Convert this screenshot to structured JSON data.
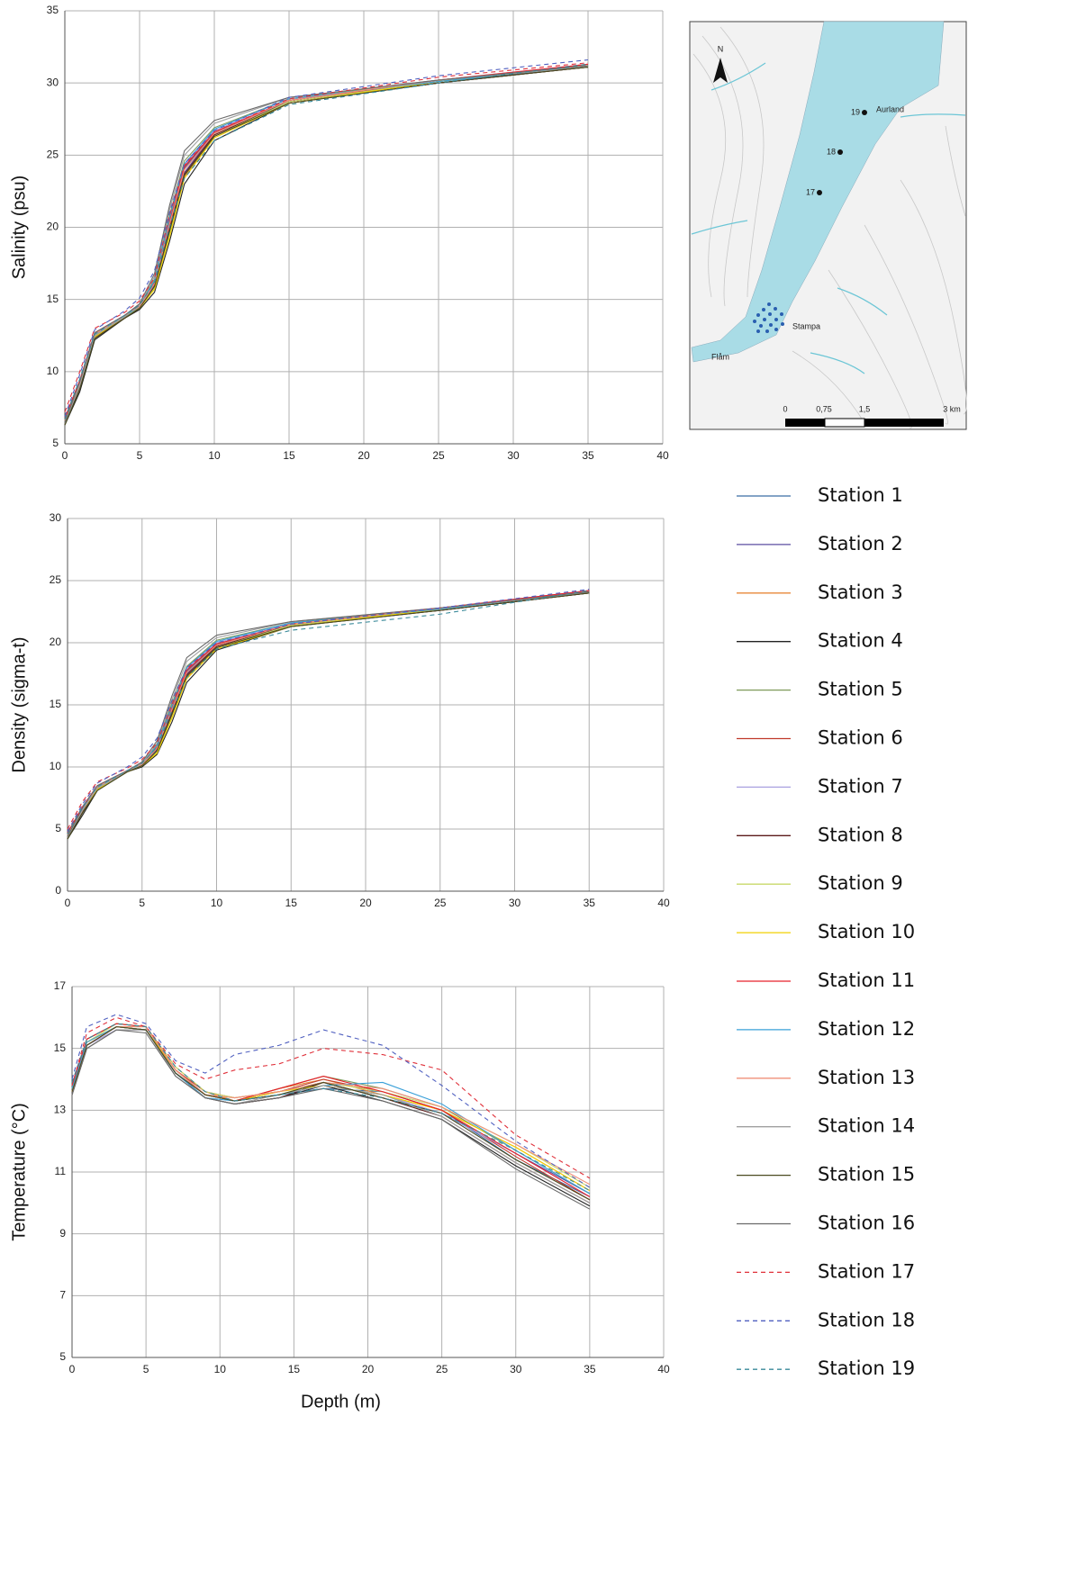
{
  "chart_data": [
    {
      "type": "line",
      "ylabel": "Salinity (psu)",
      "x": [
        0,
        1,
        2,
        4,
        5,
        6,
        7,
        8,
        10,
        15,
        25,
        35
      ],
      "xlim": [
        0,
        40
      ],
      "xticks": [
        0,
        5,
        10,
        15,
        20,
        25,
        30,
        35,
        40
      ],
      "ylim": [
        5,
        35
      ],
      "yticks": [
        5,
        10,
        15,
        20,
        25,
        30,
        35
      ],
      "grid": true,
      "series": [
        {
          "values": [
            6.5,
            9.2,
            12.4,
            13.8,
            14.5,
            16.2,
            20.3,
            24.1,
            26.6,
            28.7,
            30.1,
            31.1
          ]
        },
        {
          "values": [
            6.6,
            9.0,
            12.6,
            13.9,
            14.6,
            16.0,
            20.0,
            23.8,
            26.5,
            28.8,
            30.2,
            31.2
          ]
        },
        {
          "values": [
            6.4,
            8.8,
            12.3,
            13.7,
            14.4,
            15.8,
            19.6,
            23.5,
            26.3,
            28.7,
            30.1,
            31.3
          ]
        },
        {
          "values": [
            6.3,
            8.6,
            12.2,
            13.7,
            14.3,
            15.5,
            19.0,
            23.0,
            26.0,
            28.6,
            30.0,
            31.1
          ]
        },
        {
          "values": [
            6.7,
            9.3,
            12.6,
            13.9,
            14.6,
            16.4,
            20.8,
            24.6,
            26.9,
            28.9,
            30.2,
            31.2
          ]
        },
        {
          "values": [
            6.5,
            9.1,
            12.5,
            13.8,
            14.5,
            16.1,
            20.1,
            24.0,
            26.5,
            28.8,
            30.1,
            31.2
          ]
        },
        {
          "values": [
            6.6,
            9.2,
            12.5,
            13.8,
            14.5,
            16.3,
            20.5,
            24.3,
            26.7,
            28.8,
            30.2,
            31.3
          ]
        },
        {
          "values": [
            6.4,
            8.9,
            12.4,
            13.7,
            14.4,
            15.9,
            19.8,
            23.7,
            26.4,
            28.7,
            30.0,
            31.1
          ]
        },
        {
          "values": [
            6.5,
            9.0,
            12.5,
            13.8,
            14.4,
            15.8,
            19.5,
            23.6,
            26.3,
            28.7,
            30.1,
            31.2
          ]
        },
        {
          "values": [
            6.6,
            9.1,
            12.4,
            13.8,
            14.4,
            15.7,
            19.3,
            23.4,
            26.2,
            28.6,
            30.1,
            31.2
          ]
        },
        {
          "values": [
            6.8,
            9.4,
            12.7,
            13.9,
            14.6,
            16.2,
            20.4,
            24.2,
            26.6,
            28.8,
            30.2,
            31.3
          ]
        },
        {
          "values": [
            6.5,
            9.2,
            12.5,
            13.8,
            14.5,
            16.3,
            20.6,
            24.4,
            26.8,
            28.9,
            30.1,
            31.2
          ]
        },
        {
          "values": [
            6.6,
            9.1,
            12.6,
            13.9,
            14.5,
            16.1,
            20.2,
            24.0,
            26.5,
            28.8,
            30.2,
            31.2
          ]
        },
        {
          "values": [
            6.4,
            9.0,
            12.5,
            13.8,
            14.6,
            16.6,
            21.2,
            25.0,
            27.2,
            29.0,
            30.2,
            31.1
          ]
        },
        {
          "values": [
            6.3,
            8.8,
            12.3,
            13.7,
            14.4,
            15.9,
            19.7,
            23.6,
            26.3,
            28.6,
            30.0,
            31.1
          ]
        },
        {
          "values": [
            6.5,
            9.3,
            12.7,
            13.9,
            14.7,
            16.8,
            21.5,
            25.3,
            27.4,
            29.0,
            30.2,
            31.2
          ]
        },
        {
          "values": [
            7.2,
            10.0,
            13.0,
            14.1,
            14.9,
            16.5,
            20.8,
            24.3,
            26.6,
            28.9,
            30.4,
            31.4
          ]
        },
        {
          "values": [
            6.9,
            9.8,
            12.9,
            14.2,
            15.1,
            17.0,
            21.0,
            24.4,
            26.7,
            29.0,
            30.5,
            31.6
          ]
        },
        {
          "values": [
            6.7,
            9.5,
            12.6,
            13.9,
            14.6,
            16.2,
            20.0,
            23.4,
            26.0,
            28.5,
            30.0,
            31.3
          ]
        }
      ]
    },
    {
      "type": "line",
      "ylabel": "Density (sigma-t)",
      "x": [
        0,
        1,
        2,
        4,
        5,
        6,
        7,
        8,
        10,
        15,
        25,
        35
      ],
      "xlim": [
        0,
        40
      ],
      "xticks": [
        0,
        5,
        10,
        15,
        20,
        25,
        30,
        35,
        40
      ],
      "ylim": [
        0,
        30
      ],
      "yticks": [
        0,
        5,
        10,
        15,
        20,
        25,
        30
      ],
      "grid": true,
      "series": [
        {
          "values": [
            4.4,
            6.6,
            8.3,
            9.6,
            10.2,
            11.6,
            14.7,
            17.7,
            19.9,
            21.4,
            22.7,
            24.0
          ]
        },
        {
          "values": [
            4.5,
            6.5,
            8.4,
            9.7,
            10.3,
            11.4,
            14.4,
            17.5,
            19.8,
            21.5,
            22.8,
            24.1
          ]
        },
        {
          "values": [
            4.3,
            6.3,
            8.2,
            9.6,
            10.1,
            11.2,
            14.1,
            17.2,
            19.6,
            21.4,
            22.7,
            24.2
          ]
        },
        {
          "values": [
            4.2,
            6.1,
            8.1,
            9.6,
            10.0,
            11.0,
            13.6,
            16.8,
            19.4,
            21.3,
            22.6,
            24.0
          ]
        },
        {
          "values": [
            4.6,
            6.7,
            8.4,
            9.7,
            10.3,
            11.8,
            15.1,
            18.1,
            20.2,
            21.6,
            22.8,
            24.1
          ]
        },
        {
          "values": [
            4.4,
            6.6,
            8.3,
            9.6,
            10.2,
            11.5,
            14.5,
            17.6,
            19.8,
            21.5,
            22.7,
            24.1
          ]
        },
        {
          "values": [
            4.5,
            6.6,
            8.3,
            9.7,
            10.2,
            11.7,
            14.8,
            17.9,
            20.0,
            21.5,
            22.8,
            24.2
          ]
        },
        {
          "values": [
            4.3,
            6.4,
            8.2,
            9.6,
            10.1,
            11.3,
            14.3,
            17.4,
            19.7,
            21.4,
            22.6,
            24.0
          ]
        },
        {
          "values": [
            4.4,
            6.5,
            8.3,
            9.6,
            10.1,
            11.2,
            14.0,
            17.3,
            19.6,
            21.4,
            22.7,
            24.1
          ]
        },
        {
          "values": [
            4.5,
            6.5,
            8.2,
            9.6,
            10.1,
            11.1,
            13.9,
            17.1,
            19.5,
            21.3,
            22.7,
            24.1
          ]
        },
        {
          "values": [
            4.7,
            6.8,
            8.5,
            9.7,
            10.3,
            11.6,
            14.8,
            17.8,
            19.9,
            21.5,
            22.8,
            24.2
          ]
        },
        {
          "values": [
            4.4,
            6.6,
            8.3,
            9.6,
            10.2,
            11.7,
            14.9,
            18.0,
            20.1,
            21.6,
            22.7,
            24.1
          ]
        },
        {
          "values": [
            4.5,
            6.5,
            8.4,
            9.7,
            10.2,
            11.5,
            14.6,
            17.6,
            19.8,
            21.5,
            22.8,
            24.1
          ]
        },
        {
          "values": [
            4.3,
            6.5,
            8.3,
            9.6,
            10.3,
            11.9,
            15.4,
            18.5,
            20.4,
            21.7,
            22.8,
            24.0
          ]
        },
        {
          "values": [
            4.2,
            6.3,
            8.1,
            9.6,
            10.1,
            11.3,
            14.2,
            17.3,
            19.6,
            21.3,
            22.6,
            24.0
          ]
        },
        {
          "values": [
            4.4,
            6.7,
            8.5,
            9.7,
            10.4,
            12.1,
            15.7,
            18.8,
            20.6,
            21.7,
            22.8,
            24.1
          ]
        },
        {
          "values": [
            5.0,
            7.2,
            8.8,
            9.9,
            10.6,
            11.9,
            15.0,
            17.9,
            19.9,
            21.5,
            22.8,
            24.2
          ]
        },
        {
          "values": [
            4.8,
            7.0,
            8.7,
            10.0,
            10.8,
            12.3,
            15.3,
            18.0,
            20.0,
            21.5,
            22.8,
            24.3
          ]
        },
        {
          "values": [
            4.6,
            6.8,
            8.4,
            9.7,
            10.3,
            11.6,
            14.5,
            17.2,
            19.5,
            21.0,
            22.3,
            24.2
          ]
        }
      ]
    },
    {
      "type": "line",
      "ylabel": "Temperature (°C)",
      "xlabel": "Depth (m)",
      "x": [
        0,
        1,
        3,
        5,
        7,
        9,
        11,
        14,
        17,
        21,
        25,
        30,
        35
      ],
      "xlim": [
        0,
        40
      ],
      "xticks": [
        0,
        5,
        10,
        15,
        20,
        25,
        30,
        35,
        40
      ],
      "ylim": [
        5,
        17
      ],
      "yticks": [
        5,
        7,
        9,
        11,
        13,
        15,
        17
      ],
      "grid": true,
      "series": [
        {
          "values": [
            13.6,
            15.1,
            15.7,
            15.6,
            14.2,
            13.5,
            13.3,
            13.5,
            13.7,
            13.6,
            13.0,
            11.4,
            10.2
          ]
        },
        {
          "values": [
            13.7,
            15.3,
            15.8,
            15.7,
            14.3,
            13.5,
            13.3,
            13.6,
            13.9,
            13.4,
            12.9,
            11.6,
            10.3
          ]
        },
        {
          "values": [
            13.6,
            15.2,
            15.7,
            15.7,
            14.4,
            13.6,
            13.3,
            13.7,
            14.0,
            13.5,
            13.0,
            11.8,
            10.4
          ]
        },
        {
          "values": [
            13.5,
            15.0,
            15.6,
            15.6,
            14.2,
            13.4,
            13.2,
            13.4,
            13.8,
            13.3,
            12.7,
            11.2,
            9.9
          ]
        },
        {
          "values": [
            13.8,
            15.3,
            15.8,
            15.7,
            14.3,
            13.5,
            13.3,
            13.7,
            14.1,
            13.7,
            13.1,
            11.7,
            10.3
          ]
        },
        {
          "values": [
            13.7,
            15.2,
            15.7,
            15.6,
            14.3,
            13.6,
            13.4,
            13.6,
            14.0,
            13.6,
            13.0,
            11.5,
            10.1
          ]
        },
        {
          "values": [
            13.6,
            15.1,
            15.6,
            15.6,
            14.2,
            13.5,
            13.3,
            13.5,
            13.8,
            13.5,
            12.9,
            11.6,
            10.2
          ]
        },
        {
          "values": [
            13.5,
            15.1,
            15.7,
            15.6,
            14.2,
            13.4,
            13.2,
            13.4,
            13.9,
            13.4,
            12.8,
            11.3,
            10.0
          ]
        },
        {
          "values": [
            13.7,
            15.2,
            15.8,
            15.7,
            14.4,
            13.6,
            13.4,
            13.6,
            13.9,
            13.6,
            13.1,
            11.9,
            10.5
          ]
        },
        {
          "values": [
            13.6,
            15.2,
            15.7,
            15.6,
            14.3,
            13.5,
            13.3,
            13.6,
            13.8,
            13.5,
            13.0,
            11.8,
            10.4
          ]
        },
        {
          "values": [
            13.8,
            15.3,
            15.8,
            15.7,
            14.3,
            13.5,
            13.3,
            13.7,
            14.1,
            13.6,
            13.0,
            11.6,
            10.2
          ]
        },
        {
          "values": [
            13.7,
            15.2,
            15.7,
            15.6,
            14.2,
            13.4,
            13.3,
            13.5,
            13.8,
            13.9,
            13.2,
            11.7,
            10.3
          ]
        },
        {
          "values": [
            13.6,
            15.1,
            15.7,
            15.7,
            14.3,
            13.5,
            13.4,
            13.6,
            13.9,
            13.7,
            13.1,
            11.9,
            10.6
          ]
        },
        {
          "values": [
            13.5,
            15.0,
            15.6,
            15.6,
            14.1,
            13.4,
            13.2,
            13.5,
            13.8,
            13.5,
            12.8,
            11.3,
            10.0
          ]
        },
        {
          "values": [
            13.6,
            15.1,
            15.7,
            15.6,
            14.2,
            13.5,
            13.3,
            13.5,
            13.9,
            13.4,
            12.9,
            11.4,
            10.1
          ]
        },
        {
          "values": [
            13.5,
            15.0,
            15.6,
            15.5,
            14.1,
            13.4,
            13.2,
            13.4,
            13.7,
            13.3,
            12.7,
            11.1,
            9.8
          ]
        },
        {
          "values": [
            13.8,
            15.5,
            16.0,
            15.7,
            14.5,
            14.0,
            14.3,
            14.5,
            15.0,
            14.8,
            14.3,
            12.2,
            10.8
          ]
        },
        {
          "values": [
            14.0,
            15.7,
            16.1,
            15.8,
            14.6,
            14.2,
            14.8,
            15.1,
            15.6,
            15.1,
            13.8,
            12.0,
            10.5
          ]
        },
        {
          "values": [
            13.9,
            15.3,
            15.8,
            15.7,
            14.4,
            13.6,
            13.3,
            13.5,
            13.7,
            13.4,
            12.9,
            11.7,
            10.4
          ]
        }
      ]
    }
  ],
  "legend": [
    {
      "name": "Station 1",
      "color": "#3a6ea5",
      "dashed": false
    },
    {
      "name": "Station 2",
      "color": "#5b4ea0",
      "dashed": false
    },
    {
      "name": "Station 3",
      "color": "#e8883a",
      "dashed": false
    },
    {
      "name": "Station 4",
      "color": "#222222",
      "dashed": false
    },
    {
      "name": "Station 5",
      "color": "#7f9a5a",
      "dashed": false
    },
    {
      "name": "Station 6",
      "color": "#c0392b",
      "dashed": false
    },
    {
      "name": "Station 7",
      "color": "#a9a0e0",
      "dashed": false
    },
    {
      "name": "Station 8",
      "color": "#5c1a1a",
      "dashed": false
    },
    {
      "name": "Station 9",
      "color": "#c8d86a",
      "dashed": false
    },
    {
      "name": "Station 10",
      "color": "#f2d000",
      "dashed": false
    },
    {
      "name": "Station 11",
      "color": "#e8202a",
      "dashed": false
    },
    {
      "name": "Station 12",
      "color": "#3aa0d8",
      "dashed": false
    },
    {
      "name": "Station 13",
      "color": "#f0907a",
      "dashed": false
    },
    {
      "name": "Station 14",
      "color": "#a0a0a0",
      "dashed": false
    },
    {
      "name": "Station 15",
      "color": "#4a4a20",
      "dashed": false
    },
    {
      "name": "Station 16",
      "color": "#6a6a6a",
      "dashed": false
    },
    {
      "name": "Station 17",
      "color": "#e0303a",
      "dashed": true
    },
    {
      "name": "Station 18",
      "color": "#5060c0",
      "dashed": true
    },
    {
      "name": "Station 19",
      "color": "#3a8a9a",
      "dashed": true
    }
  ],
  "map": {
    "north": "N",
    "places": [
      "19",
      "Aurland",
      "18",
      "17",
      "Stampa",
      "Flåm"
    ],
    "scale": [
      "0",
      "0,75",
      "1,5",
      "3 km"
    ]
  }
}
